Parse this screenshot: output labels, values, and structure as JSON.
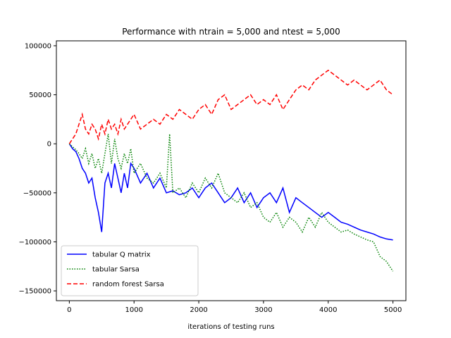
{
  "chart_data": {
    "type": "line",
    "title": "Performance with ntrain = 5,000 and ntest = 5,000",
    "xlabel": "iterations of testing runs",
    "ylabel": "",
    "xlim": [
      -200,
      5200
    ],
    "ylim": [
      -160000,
      105000
    ],
    "xticks": [
      0,
      1000,
      2000,
      3000,
      4000,
      5000
    ],
    "xtick_labels": [
      "0",
      "1000",
      "2000",
      "3000",
      "4000",
      "5000"
    ],
    "yticks": [
      100000,
      50000,
      0,
      -50000,
      -100000,
      -150000
    ],
    "ytick_labels": [
      "100000",
      "50000",
      "0",
      "−50000",
      "−100000",
      "−150000"
    ],
    "grid": false,
    "legend_position": "lower-left",
    "series": [
      {
        "name": "tabular Q matrix",
        "color": "#0000ff",
        "linestyle": "solid",
        "x": [
          0,
          50,
          100,
          150,
          200,
          250,
          300,
          350,
          400,
          450,
          500,
          550,
          600,
          650,
          700,
          750,
          800,
          850,
          900,
          950,
          1000,
          1100,
          1200,
          1300,
          1400,
          1500,
          1600,
          1700,
          1800,
          1900,
          2000,
          2100,
          2200,
          2300,
          2400,
          2500,
          2600,
          2700,
          2800,
          2900,
          3000,
          3100,
          3200,
          3300,
          3400,
          3500,
          3600,
          3700,
          3800,
          3900,
          4000,
          4100,
          4200,
          4300,
          4400,
          4500,
          4600,
          4700,
          4800,
          4900,
          5000
        ],
        "y": [
          0,
          -5000,
          -8000,
          -15000,
          -25000,
          -30000,
          -40000,
          -35000,
          -55000,
          -70000,
          -90000,
          -40000,
          -30000,
          -45000,
          -20000,
          -35000,
          -50000,
          -30000,
          -45000,
          -20000,
          -25000,
          -40000,
          -30000,
          -45000,
          -35000,
          -50000,
          -48000,
          -52000,
          -50000,
          -45000,
          -55000,
          -45000,
          -40000,
          -50000,
          -60000,
          -55000,
          -45000,
          -60000,
          -50000,
          -65000,
          -55000,
          -50000,
          -60000,
          -45000,
          -70000,
          -55000,
          -60000,
          -65000,
          -70000,
          -75000,
          -70000,
          -75000,
          -80000,
          -82000,
          -85000,
          -88000,
          -90000,
          -92000,
          -95000,
          -97000,
          -98000
        ]
      },
      {
        "name": "tabular Sarsa",
        "color": "#008000",
        "linestyle": "dotted",
        "x": [
          0,
          50,
          100,
          150,
          200,
          250,
          300,
          350,
          400,
          450,
          500,
          550,
          600,
          650,
          700,
          750,
          800,
          850,
          900,
          950,
          1000,
          1100,
          1200,
          1300,
          1400,
          1500,
          1550,
          1600,
          1700,
          1800,
          1900,
          2000,
          2100,
          2200,
          2300,
          2400,
          2500,
          2600,
          2700,
          2800,
          2900,
          3000,
          3100,
          3200,
          3300,
          3400,
          3500,
          3600,
          3700,
          3800,
          3900,
          4000,
          4100,
          4200,
          4300,
          4400,
          4500,
          4600,
          4700,
          4800,
          4900,
          5000
        ],
        "y": [
          0,
          -3000,
          -6000,
          -10000,
          -15000,
          -5000,
          -20000,
          -10000,
          -25000,
          -15000,
          -30000,
          -10000,
          10000,
          -20000,
          5000,
          -15000,
          -25000,
          -10000,
          -20000,
          -5000,
          -30000,
          -20000,
          -35000,
          -40000,
          -30000,
          -45000,
          10000,
          -50000,
          -45000,
          -55000,
          -40000,
          -50000,
          -35000,
          -45000,
          -30000,
          -50000,
          -55000,
          -60000,
          -50000,
          -65000,
          -60000,
          -75000,
          -80000,
          -70000,
          -85000,
          -75000,
          -80000,
          -90000,
          -75000,
          -85000,
          -70000,
          -80000,
          -85000,
          -90000,
          -88000,
          -92000,
          -95000,
          -98000,
          -100000,
          -115000,
          -120000,
          -130000
        ]
      },
      {
        "name": "random forest Sarsa",
        "color": "#ff0000",
        "linestyle": "dashed",
        "x": [
          0,
          50,
          100,
          150,
          200,
          250,
          300,
          350,
          400,
          450,
          500,
          550,
          600,
          650,
          700,
          750,
          800,
          850,
          900,
          950,
          1000,
          1100,
          1200,
          1300,
          1400,
          1500,
          1600,
          1700,
          1800,
          1900,
          2000,
          2100,
          2200,
          2300,
          2400,
          2500,
          2600,
          2700,
          2800,
          2900,
          3000,
          3100,
          3200,
          3300,
          3400,
          3500,
          3600,
          3700,
          3800,
          3900,
          4000,
          4100,
          4200,
          4300,
          4400,
          4500,
          4600,
          4700,
          4800,
          4900,
          5000
        ],
        "y": [
          0,
          5000,
          10000,
          20000,
          30000,
          15000,
          10000,
          20000,
          15000,
          5000,
          20000,
          10000,
          25000,
          15000,
          20000,
          10000,
          25000,
          15000,
          20000,
          25000,
          30000,
          15000,
          20000,
          25000,
          20000,
          30000,
          25000,
          35000,
          30000,
          25000,
          35000,
          40000,
          30000,
          45000,
          50000,
          35000,
          40000,
          45000,
          50000,
          40000,
          45000,
          40000,
          50000,
          35000,
          45000,
          55000,
          60000,
          55000,
          65000,
          70000,
          75000,
          70000,
          65000,
          60000,
          65000,
          60000,
          55000,
          60000,
          65000,
          55000,
          50000
        ]
      }
    ]
  }
}
